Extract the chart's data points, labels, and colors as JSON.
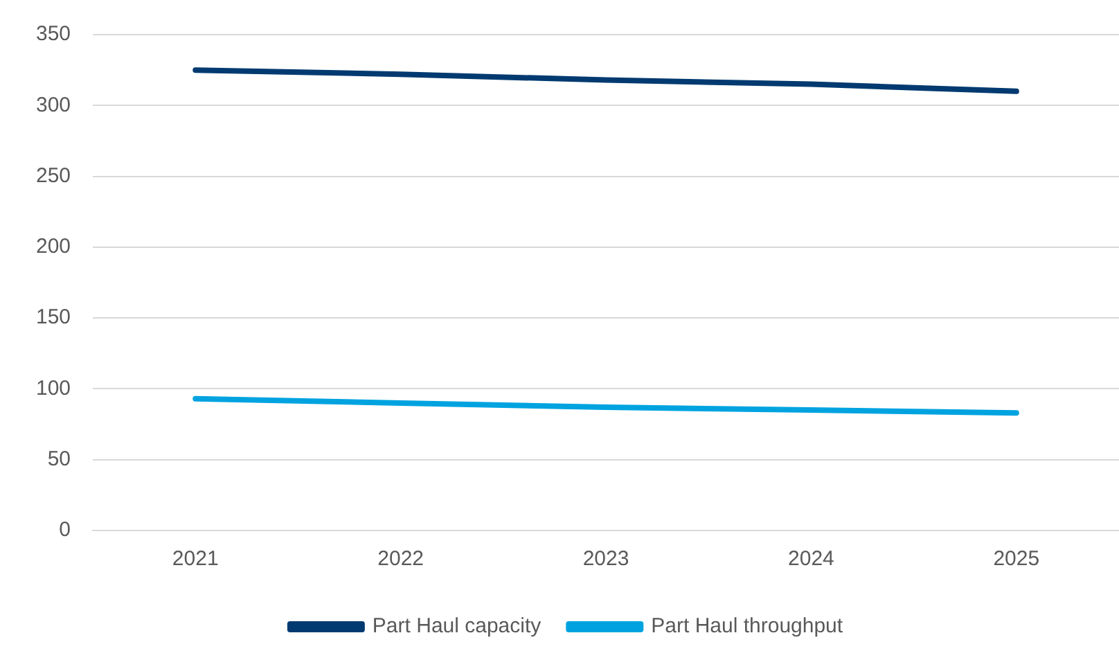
{
  "chart_data": {
    "type": "line",
    "categories": [
      "2021",
      "2022",
      "2023",
      "2024",
      "2025"
    ],
    "series": [
      {
        "name": "Part Haul capacity",
        "color": "#003a70",
        "values": [
          325,
          322,
          318,
          315,
          310
        ]
      },
      {
        "name": "Part Haul throughput",
        "color": "#00a3e0",
        "values": [
          93,
          90,
          87,
          85,
          83
        ]
      }
    ],
    "ylim": [
      0,
      350
    ],
    "yticks": [
      0,
      50,
      100,
      150,
      200,
      250,
      300,
      350
    ],
    "grid": "y",
    "legend": "bottom",
    "marker": "none",
    "line_style": "solid"
  }
}
